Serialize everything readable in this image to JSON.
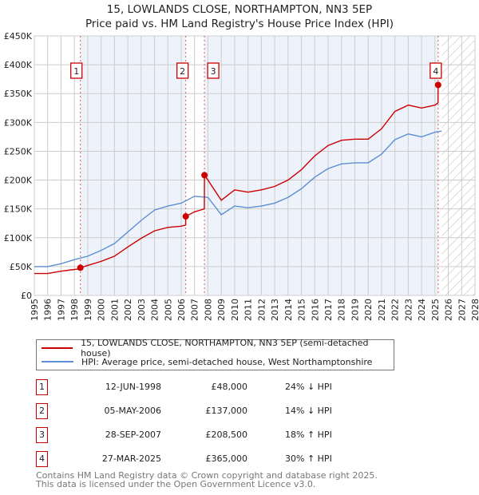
{
  "chart_data": {
    "type": "line",
    "title": "15, LOWLANDS CLOSE, NORTHAMPTON, NN3 5EP",
    "subtitle": "Price paid vs. HM Land Registry's House Price Index (HPI)",
    "xlim": [
      1995,
      2028
    ],
    "ylim": [
      0,
      450000
    ],
    "x_ticks": [
      1995,
      1996,
      1997,
      1998,
      1999,
      2000,
      2001,
      2002,
      2003,
      2004,
      2005,
      2006,
      2007,
      2008,
      2009,
      2010,
      2011,
      2012,
      2013,
      2014,
      2015,
      2016,
      2017,
      2018,
      2019,
      2020,
      2021,
      2022,
      2023,
      2024,
      2025,
      2026,
      2027,
      2028
    ],
    "y_ticks": [
      {
        "v": 0,
        "label": "£0"
      },
      {
        "v": 50000,
        "label": "£50K"
      },
      {
        "v": 100000,
        "label": "£100K"
      },
      {
        "v": 150000,
        "label": "£150K"
      },
      {
        "v": 200000,
        "label": "£200K"
      },
      {
        "v": 250000,
        "label": "£250K"
      },
      {
        "v": 300000,
        "label": "£300K"
      },
      {
        "v": 350000,
        "label": "£350K"
      },
      {
        "v": 400000,
        "label": "£400K"
      },
      {
        "v": 450000,
        "label": "£450K"
      }
    ],
    "grid": true,
    "forecast_hatch_from": 2025.5,
    "series": [
      {
        "name": "15, LOWLANDS CLOSE, NORTHAMPTON, NN3 5EP (semi-detached house)",
        "color": "#cc0000",
        "x": [
          1995,
          1996,
          1997,
          1998,
          1998.44,
          1998.45,
          1999,
          2000,
          2001,
          2002,
          2003,
          2004,
          2005,
          2006,
          2006.33,
          2006.34,
          2007,
          2007.73,
          2007.74,
          2008,
          2009,
          2010,
          2011,
          2012,
          2013,
          2014,
          2015,
          2016,
          2017,
          2018,
          2019,
          2020,
          2021,
          2022,
          2023,
          2024,
          2025,
          2025.23,
          2025.24
        ],
        "y": [
          38000,
          38000,
          42000,
          45000,
          46000,
          48000,
          52000,
          59000,
          68000,
          84000,
          99000,
          112000,
          118000,
          120000,
          122000,
          137000,
          145000,
          150000,
          208500,
          200000,
          165000,
          183000,
          179000,
          183000,
          189000,
          200000,
          218000,
          242000,
          260000,
          269000,
          271000,
          271000,
          289000,
          319000,
          330000,
          325000,
          330000,
          334000,
          365000
        ]
      },
      {
        "name": "HPI: Average price, semi-detached house, West Northamptonshire",
        "color": "#5b8fd4",
        "x": [
          1995,
          1996,
          1997,
          1998,
          1999,
          2000,
          2001,
          2002,
          2003,
          2004,
          2005,
          2006,
          2007,
          2008,
          2009,
          2010,
          2011,
          2012,
          2013,
          2014,
          2015,
          2016,
          2017,
          2018,
          2019,
          2020,
          2021,
          2022,
          2023,
          2024,
          2025,
          2025.5
        ],
        "y": [
          50000,
          50000,
          55000,
          62000,
          68000,
          78000,
          90000,
          110000,
          130000,
          148000,
          155000,
          160000,
          172000,
          170000,
          140000,
          155000,
          152000,
          155000,
          160000,
          170000,
          185000,
          205000,
          220000,
          228000,
          230000,
          230000,
          245000,
          270000,
          280000,
          275000,
          283000,
          285000
        ]
      }
    ],
    "sales": [
      {
        "id": "1",
        "x": 1998.45,
        "date": "12-JUN-1998",
        "price": 48000,
        "price_label": "£48,000",
        "hpi": "24% ↓ HPI"
      },
      {
        "id": "2",
        "x": 2006.34,
        "date": "05-MAY-2006",
        "price": 137000,
        "price_label": "£137,000",
        "hpi": "14% ↓ HPI"
      },
      {
        "id": "3",
        "x": 2007.74,
        "date": "28-SEP-2007",
        "price": 208500,
        "price_label": "£208,500",
        "hpi": "18% ↑ HPI"
      },
      {
        "id": "4",
        "x": 2025.24,
        "date": "27-MAR-2025",
        "price": 365000,
        "price_label": "£365,000",
        "hpi": "30% ↑ HPI"
      }
    ]
  },
  "legend": {
    "red": "15, LOWLANDS CLOSE, NORTHAMPTON, NN3 5EP (semi-detached house)",
    "blue": "HPI: Average price, semi-detached house, West Northamptonshire"
  },
  "footer": {
    "line1": "Contains HM Land Registry data © Crown copyright and database right 2025.",
    "line2": "This data is licensed under the Open Government Licence v3.0."
  }
}
